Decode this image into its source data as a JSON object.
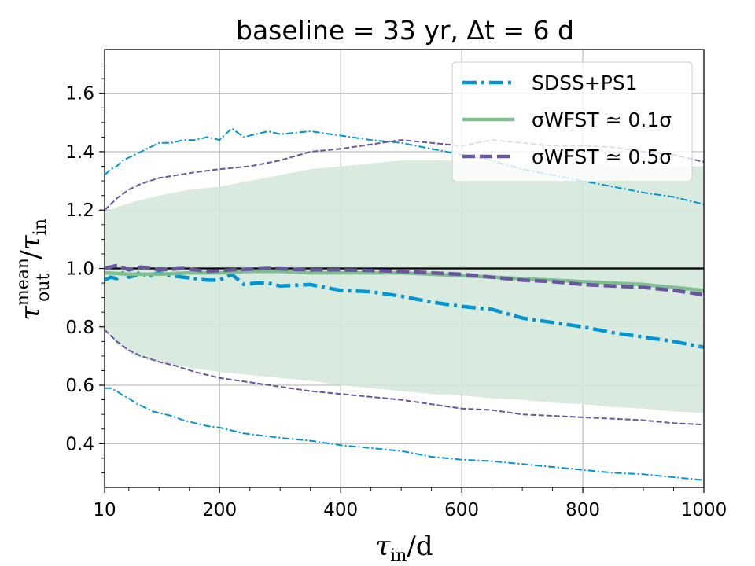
{
  "chart_data": {
    "type": "line",
    "title": "baseline = 33 yr, Δt = 6 d",
    "xlabel": "τin/d",
    "ylabel": "τout mean/τin",
    "xlim": [
      10,
      1000
    ],
    "ylim": [
      0.25,
      1.75
    ],
    "x_ticks": [
      10,
      200,
      400,
      600,
      800,
      1000
    ],
    "x_tick_labels": [
      "10",
      "200",
      "400",
      "600",
      "800",
      "1000"
    ],
    "y_ticks": [
      0.4,
      0.6,
      0.8,
      1.0,
      1.2,
      1.4,
      1.6
    ],
    "y_tick_labels": [
      "0.4",
      "0.6",
      "0.8",
      "1.0",
      "1.2",
      "1.4",
      "1.6"
    ],
    "grid": true,
    "legend_position": "top-right",
    "reference_line": {
      "y": 1.0,
      "color": "#000000"
    },
    "colors": {
      "sdss": "#0096d6",
      "wfst01": "#7fbf8f",
      "wfst05": "#6a55a0",
      "band": "#d5e8da"
    },
    "legend": [
      {
        "label": "SDSS+PS1",
        "key": "sdss"
      },
      {
        "label": "σWFST ≃ 0.1σ",
        "key": "wfst01"
      },
      {
        "label": "σWFST ≃ 0.5σ",
        "key": "wfst05"
      }
    ],
    "band": {
      "name": "σWFST ≃ 0.1σ spread",
      "x": [
        10,
        30,
        60,
        100,
        150,
        200,
        250,
        300,
        350,
        400,
        450,
        500,
        550,
        600,
        650,
        700,
        750,
        800,
        850,
        900,
        950,
        1000
      ],
      "upper": [
        1.19,
        1.21,
        1.23,
        1.25,
        1.27,
        1.28,
        1.3,
        1.32,
        1.34,
        1.35,
        1.36,
        1.37,
        1.37,
        1.37,
        1.365,
        1.36,
        1.36,
        1.36,
        1.355,
        1.355,
        1.35,
        1.35
      ],
      "lower": [
        0.8,
        0.74,
        0.7,
        0.68,
        0.66,
        0.645,
        0.635,
        0.625,
        0.615,
        0.6,
        0.59,
        0.58,
        0.57,
        0.565,
        0.555,
        0.55,
        0.54,
        0.535,
        0.525,
        0.52,
        0.51,
        0.505
      ]
    },
    "series": [
      {
        "name": "SDSS+PS1",
        "key": "sdss",
        "style": "dashdot",
        "role": "mean",
        "x": [
          10,
          20,
          30,
          40,
          50,
          60,
          70,
          80,
          90,
          100,
          120,
          140,
          160,
          180,
          200,
          220,
          240,
          260,
          280,
          300,
          350,
          400,
          450,
          500,
          550,
          600,
          650,
          700,
          750,
          800,
          850,
          900,
          950,
          1000
        ],
        "values": [
          0.96,
          0.97,
          0.965,
          0.985,
          0.97,
          0.975,
          0.99,
          0.97,
          0.98,
          0.985,
          0.975,
          0.97,
          0.965,
          0.96,
          0.96,
          0.98,
          0.945,
          0.95,
          0.95,
          0.94,
          0.945,
          0.925,
          0.92,
          0.905,
          0.885,
          0.87,
          0.86,
          0.83,
          0.815,
          0.8,
          0.78,
          0.765,
          0.75,
          0.73
        ]
      },
      {
        "name": "SDSS+PS1 upper",
        "key": "sdss",
        "style": "dashdot-thin",
        "role": "bound",
        "x": [
          10,
          20,
          30,
          40,
          50,
          60,
          70,
          80,
          90,
          100,
          120,
          140,
          160,
          180,
          200,
          220,
          240,
          260,
          280,
          300,
          350,
          400,
          450,
          500,
          550,
          600,
          650,
          700,
          750,
          800,
          850,
          900,
          950,
          1000
        ],
        "values": [
          1.32,
          1.34,
          1.35,
          1.37,
          1.38,
          1.39,
          1.4,
          1.41,
          1.42,
          1.43,
          1.43,
          1.44,
          1.44,
          1.45,
          1.44,
          1.48,
          1.45,
          1.46,
          1.47,
          1.46,
          1.47,
          1.455,
          1.44,
          1.43,
          1.41,
          1.39,
          1.37,
          1.34,
          1.32,
          1.3,
          1.28,
          1.26,
          1.245,
          1.22
        ]
      },
      {
        "name": "SDSS+PS1 lower",
        "key": "sdss",
        "style": "dashdot-thin",
        "role": "bound",
        "x": [
          10,
          20,
          30,
          40,
          50,
          60,
          70,
          80,
          90,
          100,
          120,
          140,
          160,
          180,
          200,
          220,
          240,
          260,
          280,
          300,
          350,
          400,
          450,
          500,
          550,
          600,
          650,
          700,
          750,
          800,
          850,
          900,
          950,
          1000
        ],
        "values": [
          0.59,
          0.59,
          0.58,
          0.565,
          0.555,
          0.54,
          0.53,
          0.52,
          0.51,
          0.505,
          0.495,
          0.48,
          0.47,
          0.46,
          0.455,
          0.445,
          0.435,
          0.43,
          0.425,
          0.42,
          0.41,
          0.395,
          0.385,
          0.375,
          0.355,
          0.345,
          0.34,
          0.33,
          0.32,
          0.31,
          0.3,
          0.295,
          0.285,
          0.275
        ]
      },
      {
        "name": "σWFST ≃ 0.1σ",
        "key": "wfst01",
        "style": "solid",
        "role": "mean",
        "x": [
          10,
          50,
          100,
          150,
          200,
          250,
          300,
          350,
          400,
          450,
          500,
          550,
          600,
          650,
          700,
          750,
          800,
          850,
          900,
          950,
          1000
        ],
        "values": [
          0.985,
          0.98,
          0.98,
          0.985,
          0.985,
          0.99,
          0.99,
          0.985,
          0.985,
          0.985,
          0.985,
          0.98,
          0.975,
          0.97,
          0.965,
          0.96,
          0.955,
          0.95,
          0.945,
          0.935,
          0.925
        ]
      },
      {
        "name": "σWFST ≃ 0.5σ",
        "key": "wfst05",
        "style": "dashed",
        "role": "mean",
        "x": [
          10,
          30,
          50,
          70,
          100,
          140,
          180,
          220,
          280,
          350,
          400,
          450,
          500,
          550,
          600,
          650,
          700,
          750,
          800,
          850,
          900,
          950,
          1000
        ],
        "values": [
          1.0,
          1.01,
          0.995,
          1.005,
          0.995,
          1.0,
          0.99,
          0.995,
          1.0,
          0.995,
          0.995,
          0.993,
          0.99,
          0.985,
          0.98,
          0.97,
          0.96,
          0.955,
          0.945,
          0.94,
          0.935,
          0.925,
          0.91
        ]
      },
      {
        "name": "σWFST ≃ 0.5σ upper",
        "key": "wfst05",
        "style": "dashed-thin",
        "role": "bound",
        "x": [
          10,
          30,
          50,
          70,
          100,
          130,
          160,
          200,
          250,
          300,
          350,
          400,
          450,
          500,
          550,
          600,
          650,
          700,
          750,
          800,
          850,
          900,
          950,
          1000
        ],
        "values": [
          1.2,
          1.24,
          1.27,
          1.29,
          1.31,
          1.32,
          1.33,
          1.34,
          1.35,
          1.37,
          1.4,
          1.41,
          1.425,
          1.44,
          1.43,
          1.42,
          1.44,
          1.43,
          1.42,
          1.42,
          1.415,
          1.4,
          1.39,
          1.365
        ]
      },
      {
        "name": "σWFST ≃ 0.5σ lower",
        "key": "wfst05",
        "style": "dashed-thin",
        "role": "bound",
        "x": [
          10,
          30,
          50,
          70,
          100,
          130,
          160,
          200,
          250,
          300,
          350,
          400,
          450,
          500,
          550,
          600,
          650,
          700,
          750,
          800,
          850,
          900,
          950,
          1000
        ],
        "values": [
          0.79,
          0.75,
          0.72,
          0.7,
          0.68,
          0.665,
          0.645,
          0.625,
          0.61,
          0.595,
          0.58,
          0.57,
          0.56,
          0.55,
          0.535,
          0.52,
          0.515,
          0.5,
          0.495,
          0.49,
          0.485,
          0.48,
          0.47,
          0.465
        ]
      }
    ]
  }
}
